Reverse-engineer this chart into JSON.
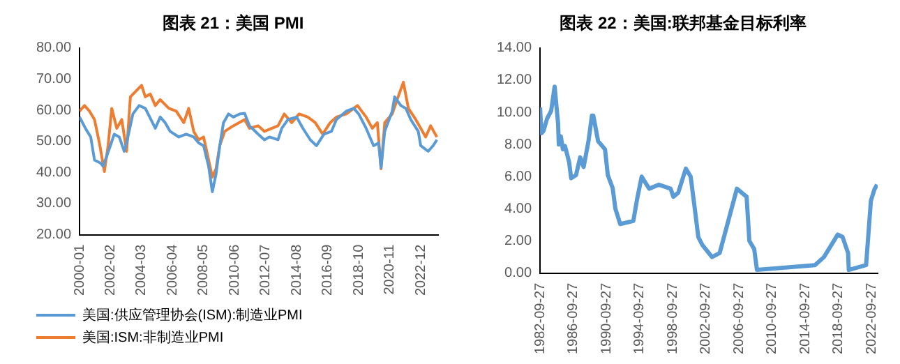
{
  "chart_data": [
    {
      "type": "line",
      "title": "图表 21：美国 PMI",
      "xlim": [
        "2000-01",
        "2024-02"
      ],
      "xticks": [
        "2000-01",
        "2002-02",
        "2004-03",
        "2006-04",
        "2008-05",
        "2010-06",
        "2012-07",
        "2014-08",
        "2016-09",
        "2018-10",
        "2020-11",
        "2022-12"
      ],
      "ylim": [
        20,
        80
      ],
      "yticks": [
        {
          "value": 20,
          "label": "20.00"
        },
        {
          "value": 30,
          "label": "30.00"
        },
        {
          "value": 40,
          "label": "40.00"
        },
        {
          "value": 50,
          "label": "50.00"
        },
        {
          "value": 60,
          "label": "60.00"
        },
        {
          "value": 70,
          "label": "70.00"
        },
        {
          "value": 80,
          "label": "80.00"
        }
      ],
      "grid": false,
      "legend": "bottom",
      "marker": "none",
      "line_style": "solid",
      "series": [
        {
          "name": "美国:供应管理协会(ISM):制造业PMI",
          "color": "#5b9bd5",
          "x": [
            "2000-01",
            "2000-06",
            "2000-10",
            "2001-01",
            "2001-06",
            "2001-08",
            "2002-01",
            "2002-05",
            "2002-09",
            "2003-01",
            "2003-03",
            "2003-08",
            "2004-01",
            "2004-06",
            "2005-02",
            "2005-06",
            "2005-10",
            "2006-02",
            "2006-09",
            "2007-03",
            "2007-09",
            "2008-01",
            "2008-05",
            "2008-09",
            "2008-12",
            "2009-03",
            "2009-06",
            "2009-09",
            "2010-01",
            "2010-05",
            "2010-10",
            "2011-02",
            "2011-06",
            "2012-01",
            "2012-06",
            "2012-10",
            "2013-05",
            "2013-08",
            "2014-01",
            "2014-08",
            "2015-01",
            "2015-07",
            "2015-12",
            "2016-06",
            "2016-12",
            "2017-04",
            "2017-12",
            "2018-06",
            "2018-10",
            "2019-04",
            "2019-10",
            "2020-02",
            "2020-04",
            "2020-07",
            "2021-01",
            "2021-03",
            "2021-08",
            "2021-12",
            "2022-04",
            "2022-10",
            "2022-12",
            "2023-06",
            "2023-10",
            "2024-01"
          ],
          "values": [
            57.8,
            54,
            51.4,
            44,
            43,
            42,
            47.7,
            52.3,
            51.4,
            46.8,
            49.5,
            58.8,
            61.5,
            60.6,
            54.2,
            57.8,
            56,
            53.2,
            51.4,
            52.3,
            51.4,
            49.5,
            48.6,
            42,
            33.8,
            39.4,
            48.6,
            56,
            58.8,
            57.8,
            58.8,
            59,
            55,
            52.3,
            50.5,
            51.4,
            50.5,
            54.2,
            57,
            57.8,
            54.2,
            50.5,
            48.6,
            52.3,
            53.2,
            57,
            59.7,
            60.6,
            58.8,
            54.2,
            48.6,
            49.5,
            41.5,
            53.2,
            59.7,
            64.3,
            61.5,
            60.6,
            57,
            53.2,
            48.6,
            46.8,
            48.6,
            50.5
          ]
        },
        {
          "name": "美国:ISM:非制造业PMI",
          "color": "#ed7d31",
          "x": [
            "2000-01",
            "2000-05",
            "2000-09",
            "2001-01",
            "2001-05",
            "2001-09",
            "2001-12",
            "2002-03",
            "2002-07",
            "2002-11",
            "2003-03",
            "2003-06",
            "2004-03",
            "2004-06",
            "2004-10",
            "2005-02",
            "2005-06",
            "2006-01",
            "2006-07",
            "2007-01",
            "2007-05",
            "2007-09",
            "2008-01",
            "2008-05",
            "2008-09",
            "2008-12",
            "2009-03",
            "2009-06",
            "2009-10",
            "2010-05",
            "2011-02",
            "2011-06",
            "2012-01",
            "2012-06",
            "2013-05",
            "2013-10",
            "2014-04",
            "2014-10",
            "2015-05",
            "2015-11",
            "2016-05",
            "2016-11",
            "2017-04",
            "2017-12",
            "2018-06",
            "2018-09",
            "2019-04",
            "2019-09",
            "2020-01",
            "2020-04",
            "2020-07",
            "2021-01",
            "2021-05",
            "2021-10",
            "2022-02",
            "2022-08",
            "2022-12",
            "2023-04",
            "2023-08",
            "2024-01"
          ],
          "values": [
            59.7,
            61.5,
            59.7,
            57,
            49.5,
            40.3,
            48.6,
            60.6,
            54.2,
            57,
            46.8,
            64.3,
            68,
            64.3,
            65.2,
            61.5,
            63.4,
            60.6,
            59.7,
            56,
            60.6,
            53.2,
            50.5,
            51.4,
            44,
            38.5,
            41.2,
            48.6,
            53.2,
            55,
            57,
            54.2,
            55,
            53.2,
            55,
            58.8,
            56,
            58.8,
            57.8,
            56,
            52.3,
            56,
            57.8,
            58.8,
            60.6,
            61.5,
            57.8,
            54.2,
            56,
            41.2,
            56,
            58.8,
            63.4,
            69,
            60.6,
            57,
            54.2,
            51.4,
            55,
            51.4
          ]
        }
      ]
    },
    {
      "type": "line",
      "title": "图表 22：美国:联邦基金目标利率",
      "xlim": [
        "1982-09-27",
        "2023-06-27"
      ],
      "xticks": [
        "1982-09-27",
        "1986-09-27",
        "1990-09-27",
        "1994-09-27",
        "1998-09-27",
        "2002-09-27",
        "2006-09-27",
        "2010-09-27",
        "2014-09-27",
        "2018-09-27",
        "2022-09-27"
      ],
      "ylim": [
        0,
        14
      ],
      "yticks": [
        {
          "value": 0,
          "label": "0.00"
        },
        {
          "value": 2,
          "label": "2.00"
        },
        {
          "value": 4,
          "label": "4.00"
        },
        {
          "value": 6,
          "label": "6.00"
        },
        {
          "value": 8,
          "label": "8.00"
        },
        {
          "value": 10,
          "label": "10.00"
        },
        {
          "value": 12,
          "label": "12.00"
        },
        {
          "value": 14,
          "label": "14.00"
        }
      ],
      "grid": false,
      "legend": false,
      "marker": "none",
      "line_style": "solid",
      "series": [
        {
          "color": "#5b9bd5",
          "x": [
            "1982-09-27",
            "1982-12-01",
            "1983-03-01",
            "1983-08-01",
            "1984-02-01",
            "1984-07-01",
            "1984-12-01",
            "1985-01-01",
            "1985-04-01",
            "1985-07-01",
            "1985-10-01",
            "1986-04-01",
            "1986-07-01",
            "1987-02-01",
            "1987-08-01",
            "1988-01-01",
            "1988-08-01",
            "1989-01-01",
            "1989-03-01",
            "1989-10-01",
            "1990-08-01",
            "1990-12-01",
            "1991-07-01",
            "1991-11-01",
            "1992-06-01",
            "1994-01-01",
            "1994-06-01",
            "1995-01-01",
            "1995-12-01",
            "1997-02-01",
            "1998-07-01",
            "1998-11-01",
            "1999-06-01",
            "2000-05-01",
            "2000-12-01",
            "2001-06-01",
            "2001-11-01",
            "2002-05-01",
            "2003-07-01",
            "2004-06-01",
            "2006-07-01",
            "2007-09-01",
            "2008-01-01",
            "2008-08-01",
            "2008-12-01",
            "2015-12-01",
            "2017-01-01",
            "2018-09-01",
            "2019-04-01",
            "2019-12-01",
            "2020-01-01",
            "2022-02-01",
            "2022-09-01",
            "2023-02-01",
            "2023-06-01"
          ],
          "values": [
            10.3,
            8.7,
            8.85,
            9.6,
            10.1,
            11.6,
            9.3,
            8,
            8.5,
            7.7,
            7.9,
            6.9,
            5.9,
            6.1,
            7.2,
            6.6,
            8.2,
            9.8,
            9.8,
            8.2,
            7.7,
            6.1,
            5.3,
            4,
            3.05,
            3.25,
            4.5,
            6,
            5.25,
            5.5,
            5.25,
            4.75,
            5,
            6.5,
            6,
            4,
            2.25,
            1.75,
            1,
            1.25,
            5.25,
            4.75,
            2,
            1.5,
            0.2,
            0.5,
            1,
            2.4,
            2.25,
            1.25,
            0.2,
            0.5,
            4.5,
            5.2,
            5.5
          ]
        }
      ]
    }
  ]
}
